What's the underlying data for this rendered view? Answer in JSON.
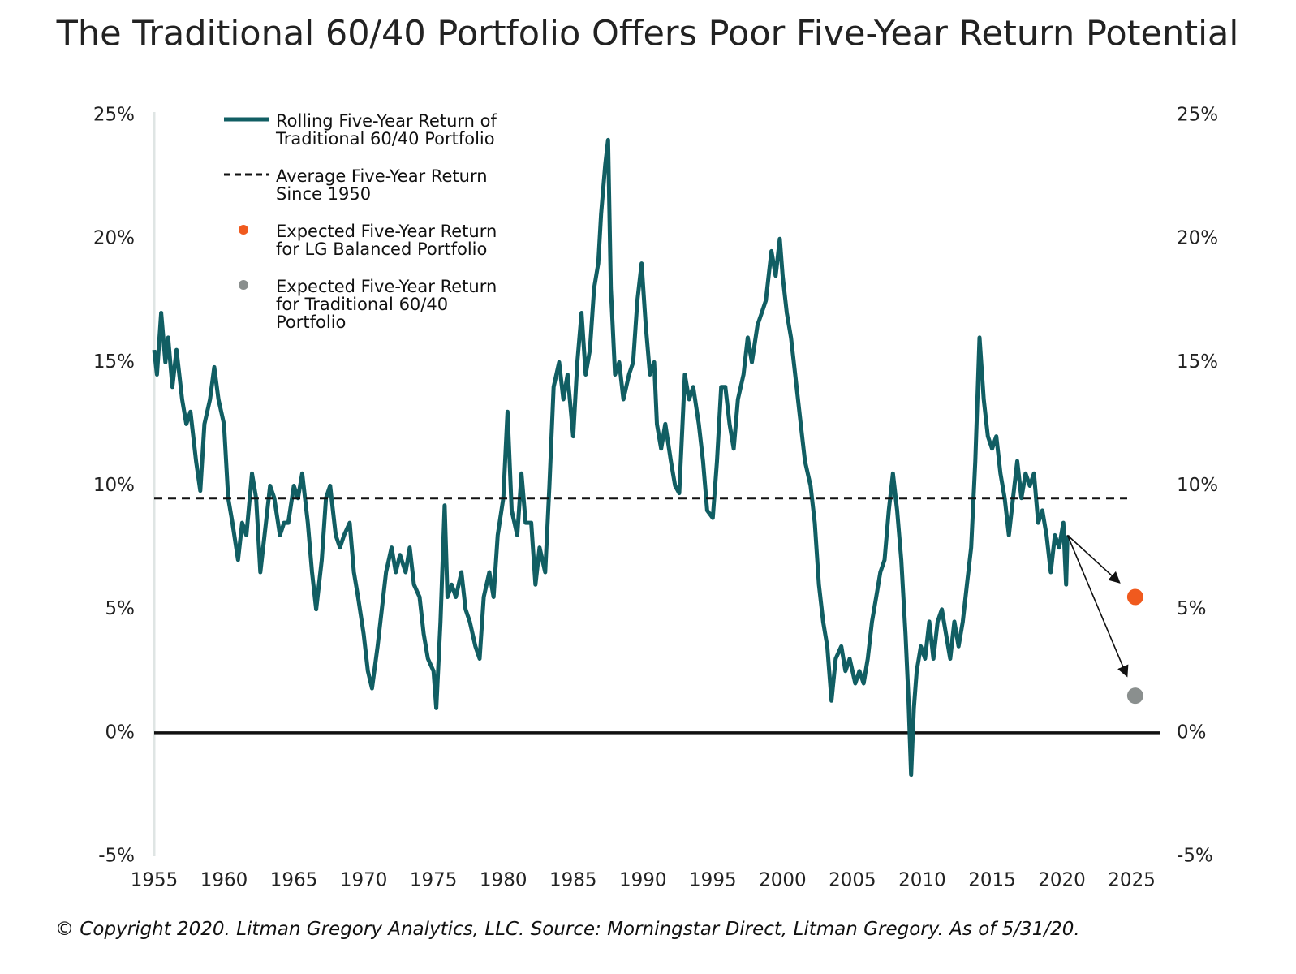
{
  "chart_data": {
    "type": "line",
    "title": "The Traditional 60/40 Portfolio Offers Poor Five-Year Return Potential",
    "footnote": "© Copyright 2020. Litman Gregory Analytics, LLC. Source: Morningstar Direct, Litman Gregory. As of 5/31/20.",
    "xlim": [
      1955,
      2027
    ],
    "xticks": [
      1955,
      1960,
      1965,
      1970,
      1975,
      1980,
      1985,
      1990,
      1995,
      2000,
      2005,
      2010,
      2015,
      2020,
      2025
    ],
    "ylim": [
      -5,
      25
    ],
    "yticks": [
      {
        "value": -5,
        "label": "-5%"
      },
      {
        "value": 0,
        "label": "0%"
      },
      {
        "value": 5,
        "label": "5%"
      },
      {
        "value": 10,
        "label": "10%"
      },
      {
        "value": 15,
        "label": "15%"
      },
      {
        "value": 20,
        "label": "20%"
      },
      {
        "value": 25,
        "label": "25%"
      }
    ],
    "y2lim": [
      -5,
      25
    ],
    "y2ticks": [
      {
        "value": -5,
        "label": "-5%"
      },
      {
        "value": 0,
        "label": "0%"
      },
      {
        "value": 5,
        "label": "5%"
      },
      {
        "value": 10,
        "label": "10%"
      },
      {
        "value": 15,
        "label": "15%"
      },
      {
        "value": 20,
        "label": "20%"
      },
      {
        "value": 25,
        "label": "25%"
      }
    ],
    "zero_line": true,
    "grid": false,
    "legend": "upper left",
    "series": [
      {
        "name": "Rolling Five-Year Return of\nTraditional 60/40 Portfolio",
        "color": "#115e63",
        "type": "line",
        "x": [
          1955.0,
          1955.2,
          1955.5,
          1955.8,
          1956.0,
          1956.3,
          1956.6,
          1957.0,
          1957.3,
          1957.6,
          1958.0,
          1958.3,
          1958.6,
          1959.0,
          1959.3,
          1959.6,
          1960.0,
          1960.3,
          1960.6,
          1961.0,
          1961.3,
          1961.6,
          1962.0,
          1962.3,
          1962.6,
          1963.0,
          1963.3,
          1963.6,
          1964.0,
          1964.3,
          1964.6,
          1965.0,
          1965.3,
          1965.6,
          1966.0,
          1966.3,
          1966.6,
          1967.0,
          1967.3,
          1967.6,
          1968.0,
          1968.3,
          1968.6,
          1969.0,
          1969.3,
          1969.6,
          1970.0,
          1970.3,
          1970.6,
          1971.0,
          1971.3,
          1971.6,
          1972.0,
          1972.3,
          1972.6,
          1973.0,
          1973.3,
          1973.6,
          1974.0,
          1974.3,
          1974.6,
          1975.0,
          1975.2,
          1975.5,
          1975.8,
          1976.0,
          1976.3,
          1976.6,
          1977.0,
          1977.3,
          1977.6,
          1978.0,
          1978.3,
          1978.6,
          1979.0,
          1979.3,
          1979.6,
          1980.0,
          1980.3,
          1980.6,
          1981.0,
          1981.3,
          1981.6,
          1982.0,
          1982.3,
          1982.6,
          1983.0,
          1983.3,
          1983.6,
          1984.0,
          1984.3,
          1984.6,
          1985.0,
          1985.3,
          1985.6,
          1985.9,
          1986.2,
          1986.5,
          1986.8,
          1987.0,
          1987.3,
          1987.5,
          1987.7,
          1988.0,
          1988.3,
          1988.6,
          1989.0,
          1989.3,
          1989.6,
          1989.9,
          1990.2,
          1990.5,
          1990.8,
          1991.0,
          1991.3,
          1991.6,
          1992.0,
          1992.3,
          1992.6,
          1993.0,
          1993.3,
          1993.6,
          1994.0,
          1994.3,
          1994.6,
          1995.0,
          1995.3,
          1995.6,
          1995.9,
          1996.2,
          1996.5,
          1996.8,
          1997.2,
          1997.5,
          1997.8,
          1998.2,
          1998.5,
          1998.8,
          1999.2,
          1999.5,
          1999.8,
          2000.0,
          2000.3,
          2000.6,
          2001.0,
          2001.3,
          2001.6,
          2002.0,
          2002.3,
          2002.6,
          2002.9,
          2003.2,
          2003.5,
          2003.8,
          2004.2,
          2004.5,
          2004.8,
          2005.2,
          2005.5,
          2005.8,
          2006.1,
          2006.4,
          2006.7,
          2007.0,
          2007.3,
          2007.6,
          2007.9,
          2008.2,
          2008.5,
          2008.8,
          2009.0,
          2009.2,
          2009.4,
          2009.6,
          2009.9,
          2010.2,
          2010.5,
          2010.8,
          2011.1,
          2011.4,
          2011.7,
          2012.0,
          2012.3,
          2012.6,
          2012.9,
          2013.2,
          2013.5,
          2013.8,
          2014.1,
          2014.4,
          2014.7,
          2015.0,
          2015.3,
          2015.6,
          2015.9,
          2016.2,
          2016.5,
          2016.8,
          2017.1,
          2017.4,
          2017.7,
          2018.0,
          2018.3,
          2018.6,
          2018.9,
          2019.2,
          2019.5,
          2019.8,
          2020.1,
          2020.3,
          2020.4
        ],
        "values": [
          15.5,
          14.5,
          17.0,
          15.0,
          16.0,
          14.0,
          15.5,
          13.5,
          12.5,
          13.0,
          11.0,
          9.8,
          12.5,
          13.5,
          14.8,
          13.5,
          12.5,
          9.5,
          8.5,
          7.0,
          8.5,
          8.0,
          10.5,
          9.5,
          6.5,
          8.5,
          10.0,
          9.5,
          8.0,
          8.5,
          8.5,
          10.0,
          9.5,
          10.5,
          8.5,
          6.5,
          5.0,
          7.0,
          9.5,
          10.0,
          8.0,
          7.5,
          8.0,
          8.5,
          6.5,
          5.5,
          4.0,
          2.5,
          1.8,
          3.5,
          5.0,
          6.5,
          7.5,
          6.5,
          7.2,
          6.5,
          7.5,
          6.0,
          5.5,
          4.0,
          3.0,
          2.5,
          1.0,
          4.5,
          9.2,
          5.5,
          6.0,
          5.5,
          6.5,
          5.0,
          4.5,
          3.5,
          3.0,
          5.5,
          6.5,
          5.5,
          8.0,
          9.5,
          13.0,
          9.0,
          8.0,
          10.5,
          8.5,
          8.5,
          6.0,
          7.5,
          6.5,
          10.0,
          14.0,
          15.0,
          13.5,
          14.5,
          12.0,
          15.0,
          17.0,
          14.5,
          15.5,
          18.0,
          19.0,
          21.0,
          23.0,
          24.0,
          18.0,
          14.5,
          15.0,
          13.5,
          14.5,
          15.0,
          17.5,
          19.0,
          16.5,
          14.5,
          15.0,
          12.5,
          11.5,
          12.5,
          11.0,
          10.0,
          9.7,
          14.5,
          13.5,
          14.0,
          12.5,
          11.0,
          9.0,
          8.7,
          11.0,
          14.0,
          14.0,
          12.5,
          11.5,
          13.5,
          14.5,
          16.0,
          15.0,
          16.5,
          17.0,
          17.5,
          19.5,
          18.5,
          20.0,
          18.5,
          17.0,
          16.0,
          14.0,
          12.5,
          11.0,
          10.0,
          8.5,
          6.0,
          4.5,
          3.5,
          1.3,
          3.0,
          3.5,
          2.5,
          3.0,
          2.0,
          2.5,
          2.0,
          3.0,
          4.5,
          5.5,
          6.5,
          7.0,
          9.0,
          10.5,
          9.0,
          7.0,
          4.0,
          1.5,
          -1.7,
          1.0,
          2.5,
          3.5,
          3.0,
          4.5,
          3.0,
          4.5,
          5.0,
          4.0,
          3.0,
          4.5,
          3.5,
          4.5,
          6.0,
          7.5,
          11.0,
          16.0,
          13.5,
          12.0,
          11.5,
          12.0,
          10.5,
          9.5,
          8.0,
          9.5,
          11.0,
          9.5,
          10.5,
          10.0,
          10.5,
          8.5,
          9.0,
          8.0,
          6.5,
          8.0,
          7.5,
          8.5,
          6.0,
          8.0
        ]
      },
      {
        "name": "Average Five-Year Return\nSince 1950",
        "color": "#111111",
        "type": "hline",
        "values": [
          9.5
        ]
      },
      {
        "name": "Expected Five-Year Return\nfor LG Balanced Portfolio",
        "color": "#f05a1e",
        "type": "scatter",
        "x": [
          2025.25
        ],
        "values": [
          5.5
        ]
      },
      {
        "name": "Expected Five-Year Return\nfor Traditional 60/40\nPortfolio",
        "color": "#8a8f8e",
        "type": "scatter",
        "x": [
          2025.25
        ],
        "values": [
          1.5
        ]
      }
    ]
  }
}
